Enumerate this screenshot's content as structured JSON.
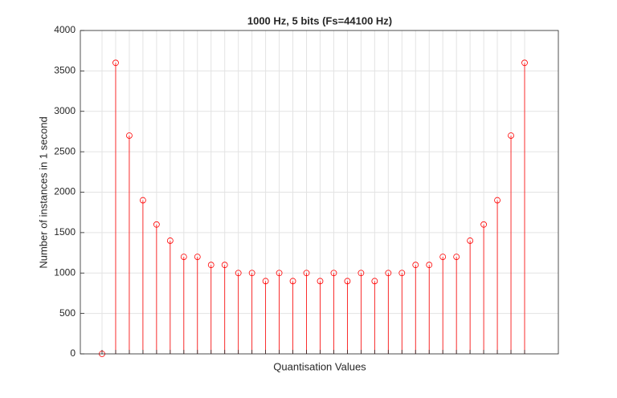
{
  "chart_data": {
    "type": "stem",
    "title": "1000 Hz, 5 bits (Fs=44100 Hz)",
    "x_label": "Quantisation Values",
    "y_label": "Number of instances in 1 second",
    "categories": [
      null,
      null,
      null,
      null,
      null,
      null,
      null,
      null,
      null,
      null,
      null,
      null,
      null,
      null,
      null,
      null,
      null,
      null,
      null,
      null,
      null,
      null,
      null,
      null,
      null,
      null,
      null,
      null,
      null,
      null,
      null,
      null
    ],
    "values": [
      0,
      3600,
      2700,
      1900,
      1600,
      1400,
      1200,
      1200,
      1100,
      1100,
      1000,
      1000,
      900,
      1000,
      900,
      1000,
      900,
      1000,
      900,
      1000,
      900,
      1000,
      1000,
      1100,
      1100,
      1200,
      1200,
      1400,
      1600,
      1900,
      2700,
      3600
    ],
    "color": "#ff0000",
    "ylim": [
      0,
      4000
    ],
    "yticks": [
      0,
      500,
      1000,
      1500,
      2000,
      2500,
      3000,
      3500,
      4000
    ],
    "grid": true
  }
}
